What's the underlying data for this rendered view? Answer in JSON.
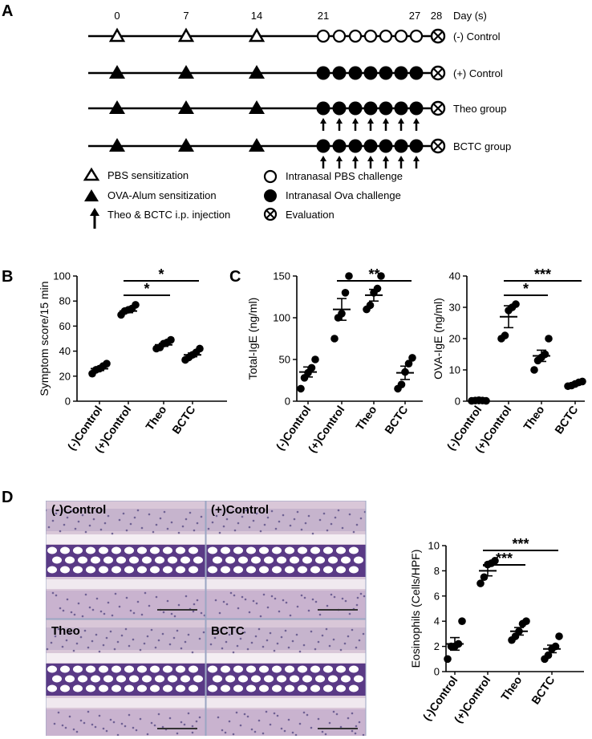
{
  "panels": {
    "a": "A",
    "b": "B",
    "c": "C",
    "d": "D"
  },
  "timeline": {
    "day_unit": "Day (s)",
    "days": [
      "0",
      "7",
      "14",
      "21",
      "27",
      "28"
    ],
    "rows": [
      {
        "label": "(-) Control",
        "sensitization": "pbs",
        "challenge": "pbs",
        "injection": false
      },
      {
        "label": "(+) Control",
        "sensitization": "ova",
        "challenge": "ova",
        "injection": false
      },
      {
        "label": "Theo group",
        "sensitization": "ova",
        "challenge": "ova",
        "injection": true
      },
      {
        "label": "BCTC group",
        "sensitization": "ova",
        "challenge": "ova",
        "injection": true
      }
    ],
    "legend": {
      "pbs_sensitization": "PBS sensitization",
      "ova_sensitization": "OVA-Alum sensitization",
      "injection": "Theo & BCTC i.p. injection",
      "pbs_challenge": "Intranasal PBS challenge",
      "ova_challenge": "Intranasal Ova challenge",
      "evaluation": "Evaluation"
    },
    "icons": {
      "open_triangle": "open-triangle-icon",
      "filled_triangle": "filled-triangle-icon",
      "up_arrow": "up-arrow-icon",
      "open_circle": "open-circle-icon",
      "filled_circle": "filled-circle-icon",
      "crossed_circle": "crossed-circle-icon"
    }
  },
  "histology": {
    "labels": [
      "(-)Control",
      "(+)Control",
      "Theo",
      "BCTC"
    ],
    "colors": {
      "tissue": "#d9c7d8",
      "cartilage": "#5a3a86",
      "background": "#eef0f4"
    }
  },
  "chart_data": [
    {
      "id": "symptom",
      "type": "scatter",
      "categories": [
        "(-)Control",
        "(+)Control",
        "Theo",
        "BCTC"
      ],
      "ylabel": "Symptom score/15 min",
      "ylim": [
        0,
        100
      ],
      "yticks": [
        0,
        20,
        40,
        60,
        80,
        100
      ],
      "points": [
        [
          22,
          25,
          26,
          28,
          30
        ],
        [
          69,
          72,
          73,
          74,
          77
        ],
        [
          42,
          43,
          46,
          47,
          49
        ],
        [
          33,
          35,
          37,
          39,
          42
        ]
      ],
      "means": [
        26,
        72,
        45,
        37
      ],
      "sems": [
        1.5,
        1.3,
        1.2,
        1.5
      ],
      "significance": [
        {
          "from": "(+)Control",
          "to": "BCTC",
          "label": "*"
        },
        {
          "from": "(+)Control",
          "to": "Theo",
          "label": "*"
        }
      ]
    },
    {
      "id": "total_ige",
      "type": "scatter",
      "categories": [
        "(-)Control",
        "(+)Control",
        "Theo",
        "BCTC"
      ],
      "ylabel": "Total-IgE (ng/ml)",
      "ylim": [
        0,
        150
      ],
      "yticks": [
        0,
        50,
        100,
        150
      ],
      "points": [
        [
          15,
          28,
          34,
          40,
          50
        ],
        [
          75,
          100,
          105,
          130,
          150
        ],
        [
          110,
          115,
          130,
          135,
          150
        ],
        [
          15,
          20,
          35,
          45,
          52
        ]
      ],
      "means": [
        35,
        110,
        127,
        34
      ],
      "sems": [
        6,
        13,
        7,
        8
      ],
      "significance": [
        {
          "from": "(+)Control",
          "to": "BCTC",
          "label": "**"
        }
      ]
    },
    {
      "id": "ova_ige",
      "type": "scatter",
      "categories": [
        "(-)Control",
        "(+)Control",
        "Theo",
        "BCTC"
      ],
      "ylabel": "OVA-IgE (ng/ml)",
      "ylim": [
        0,
        40
      ],
      "yticks": [
        0,
        10,
        20,
        30,
        40
      ],
      "points": [
        [
          0.1,
          0.2,
          0.3,
          0.2,
          0.1
        ],
        [
          20,
          21,
          29,
          30,
          31
        ],
        [
          10,
          13,
          14,
          15,
          20
        ],
        [
          4.8,
          5,
          5.5,
          6,
          6.3
        ]
      ],
      "means": [
        0.2,
        27,
        14.5,
        5.5
      ],
      "sems": [
        0.1,
        3.5,
        1.8,
        0.4
      ],
      "significance": [
        {
          "from": "(+)Control",
          "to": "BCTC",
          "label": "***"
        },
        {
          "from": "(+)Control",
          "to": "Theo",
          "label": "*"
        }
      ]
    },
    {
      "id": "eosinophils",
      "type": "scatter",
      "categories": [
        "(-)Control",
        "(+)Control",
        "Theo",
        "BCTC"
      ],
      "ylabel": "Eosinophils (Cells/HPF)",
      "ylim": [
        0,
        10
      ],
      "yticks": [
        0,
        2,
        4,
        6,
        8,
        10
      ],
      "points": [
        [
          1,
          2,
          2,
          2.2,
          4
        ],
        [
          7,
          7.5,
          8.5,
          8.6,
          8.8
        ],
        [
          2.5,
          2.8,
          3.2,
          3.8,
          4
        ],
        [
          1,
          1.3,
          1.8,
          2,
          2.8
        ]
      ],
      "means": [
        2.2,
        8,
        3.2,
        1.8
      ],
      "sems": [
        0.5,
        0.4,
        0.3,
        0.3
      ],
      "significance": [
        {
          "from": "(+)Control",
          "to": "BCTC",
          "label": "***"
        },
        {
          "from": "(+)Control",
          "to": "Theo",
          "label": "***"
        }
      ]
    }
  ]
}
